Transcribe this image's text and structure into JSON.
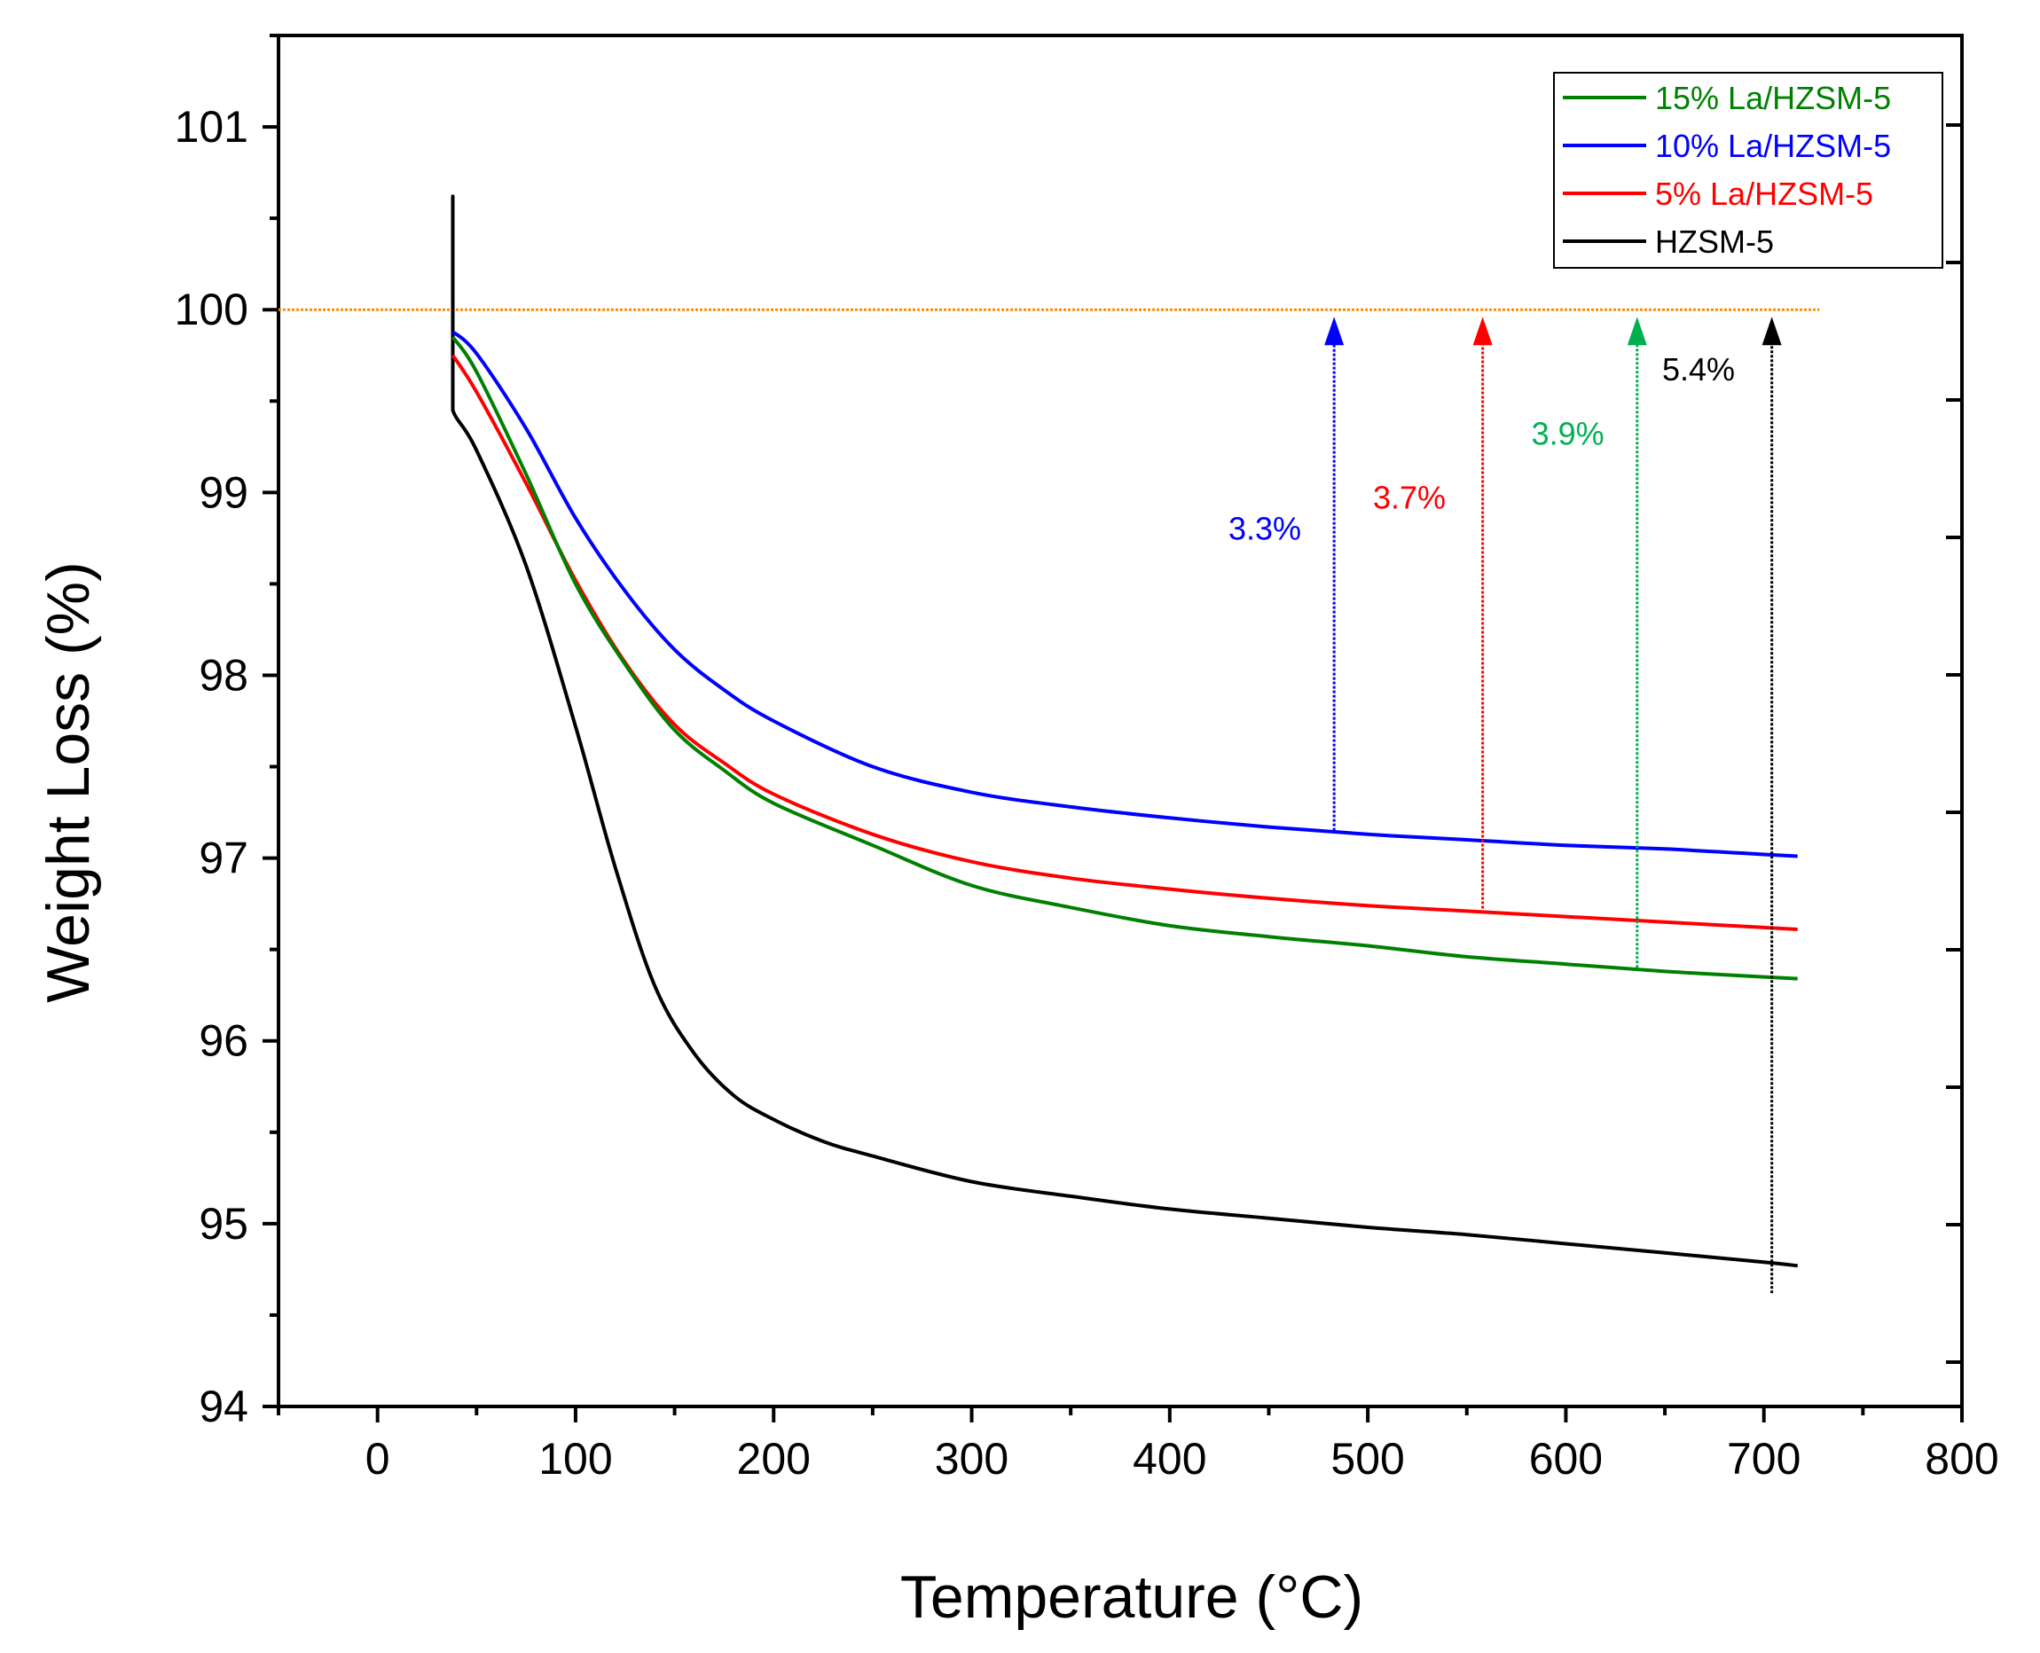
{
  "chart_data": {
    "type": "line",
    "title": "",
    "xlabel": "Temperature (°C)",
    "ylabel": "Weight Loss (%)",
    "xlim": [
      -50,
      800
    ],
    "ylim": [
      94,
      101.5
    ],
    "xticks": [
      0,
      100,
      200,
      300,
      400,
      500,
      600,
      700,
      800
    ],
    "yticks": [
      94,
      95,
      96,
      97,
      98,
      99,
      100,
      101
    ],
    "x_tick_labels": [
      "0",
      "100",
      "200",
      "300",
      "400",
      "500",
      "600",
      "700",
      "800"
    ],
    "y_tick_labels": [
      "94",
      "95",
      "96",
      "97",
      "98",
      "99",
      "100",
      "101"
    ],
    "grid": false,
    "legend_position": "top-right",
    "reference_line": {
      "y": 100,
      "x_range": [
        -50,
        728
      ],
      "color": "#ff8c00"
    },
    "series": [
      {
        "name": "15% La/HZSM-5",
        "color": "#008000",
        "x": [
          38,
          50,
          75,
          100,
          125,
          150,
          175,
          200,
          250,
          300,
          350,
          400,
          450,
          500,
          550,
          600,
          650,
          700,
          717
        ],
        "y": [
          99.85,
          99.66,
          99.1,
          98.5,
          98.06,
          97.7,
          97.48,
          97.3,
          97.07,
          96.85,
          96.73,
          96.63,
          96.57,
          96.52,
          96.46,
          96.42,
          96.38,
          96.35,
          96.34
        ]
      },
      {
        "name": "10% La/HZSM-5",
        "color": "#0000ff",
        "x": [
          38,
          50,
          75,
          100,
          125,
          150,
          175,
          200,
          250,
          300,
          350,
          400,
          450,
          500,
          550,
          600,
          650,
          700,
          717
        ],
        "y": [
          99.88,
          99.76,
          99.35,
          98.86,
          98.46,
          98.14,
          97.92,
          97.75,
          97.5,
          97.36,
          97.28,
          97.22,
          97.17,
          97.13,
          97.1,
          97.07,
          97.05,
          97.02,
          97.01
        ]
      },
      {
        "name": "5% La/HZSM-5",
        "color": "#ff0000",
        "x": [
          38,
          50,
          75,
          100,
          125,
          150,
          175,
          200,
          250,
          300,
          350,
          400,
          450,
          500,
          550,
          600,
          650,
          700,
          717
        ],
        "y": [
          99.75,
          99.55,
          99.05,
          98.52,
          98.07,
          97.73,
          97.52,
          97.35,
          97.13,
          96.98,
          96.89,
          96.83,
          96.78,
          96.74,
          96.71,
          96.68,
          96.65,
          96.62,
          96.61
        ]
      },
      {
        "name": "HZSM-5",
        "color": "#000000",
        "x": [
          38,
          38,
          38,
          38,
          50,
          75,
          100,
          120,
          140,
          160,
          180,
          200,
          225,
          250,
          300,
          350,
          400,
          450,
          500,
          550,
          600,
          650,
          700,
          717
        ],
        "y": [
          99.45,
          100.62,
          99.62,
          99.45,
          99.23,
          98.6,
          97.72,
          96.95,
          96.3,
          95.93,
          95.7,
          95.57,
          95.45,
          95.37,
          95.23,
          95.15,
          95.08,
          95.03,
          94.98,
          94.94,
          94.89,
          94.84,
          94.79,
          94.77
        ]
      }
    ],
    "annotations": [
      {
        "text": "3.3%",
        "color": "#0000ff",
        "arrow_x": 483,
        "arrow_from_y": 97.15,
        "arrow_to_y": 100,
        "label_x": 448,
        "label_y": 98.8
      },
      {
        "text": "3.7%",
        "color": "#ff0000",
        "arrow_x": 558,
        "arrow_from_y": 96.7,
        "arrow_to_y": 100,
        "label_x": 521,
        "label_y": 98.97
      },
      {
        "text": "3.9%",
        "color": "#00b050",
        "arrow_x": 636,
        "arrow_from_y": 96.4,
        "arrow_to_y": 100,
        "label_x": 601,
        "label_y": 99.32
      },
      {
        "text": "5.4%",
        "color": "#000000",
        "arrow_x": 704,
        "arrow_from_y": 94.62,
        "arrow_to_y": 100,
        "label_x": 667,
        "label_y": 99.67
      }
    ]
  }
}
